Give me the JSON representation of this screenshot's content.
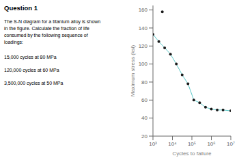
{
  "chart_data": {
    "type": "line",
    "title": "Question 1",
    "annotations": [
      "The S-N diagram for a titanium alloy is shown\nin the figure. Calculate the fraction of life\nconsumed by the following sequence of\nloadings:",
      "15,000 cycles at 80 MPa",
      "120,000 cycles at 60 MPa",
      "3,500,000 cycles at 50 MPa"
    ],
    "xlabel": "Cycles to failure",
    "ylabel": "Maximum stress (ksi)",
    "log": "x",
    "xlim": [
      1000,
      10000000
    ],
    "xticks": [
      {
        "value": 1000,
        "label": "10³"
      },
      {
        "value": 10000,
        "label": "10⁴"
      },
      {
        "value": 100000,
        "label": "10⁵"
      },
      {
        "value": 1000000,
        "label": "10⁶"
      },
      {
        "value": 10000000,
        "label": "10⁷"
      }
    ],
    "ylim": [
      20,
      165
    ],
    "yticks": [
      20,
      40,
      60,
      80,
      100,
      120,
      140,
      160
    ],
    "grid": false,
    "series": [
      {
        "type": "line",
        "color": "#5bc8c8",
        "x": [
          1000,
          1995.2623149688789,
          3981.0717055349724,
          7943.282347242815,
          15848.93192461114,
          31622.776601683792,
          63095.73444801943,
          125892.54117941661,
          251188.6431509582,
          501187.2336272715,
          1000000,
          1995262.3149688789,
          3981071.7055349695,
          10000000
        ],
        "values": [
          133,
          125,
          118,
          111,
          100,
          88,
          78,
          60,
          57,
          52,
          50,
          49,
          49,
          48
        ]
      },
      {
        "type": "scatter",
        "color": "#1a1a1a",
        "marker": "circle",
        "x": [
          1000,
          1995.2623149688789,
          3981.0717055349724,
          7943.282347242815,
          15848.93192461114,
          31622.776601683792,
          63095.73444801943,
          125892.54117941661,
          251188.6431509582,
          501187.2336272715,
          1000000,
          1995262.3149688789,
          3981071.7055349695,
          10000000,
          3019.9517204020162
        ],
        "values": [
          133,
          125,
          118,
          111,
          100,
          88,
          78,
          60,
          57,
          52,
          50,
          49,
          49,
          48,
          158
        ]
      }
    ]
  }
}
